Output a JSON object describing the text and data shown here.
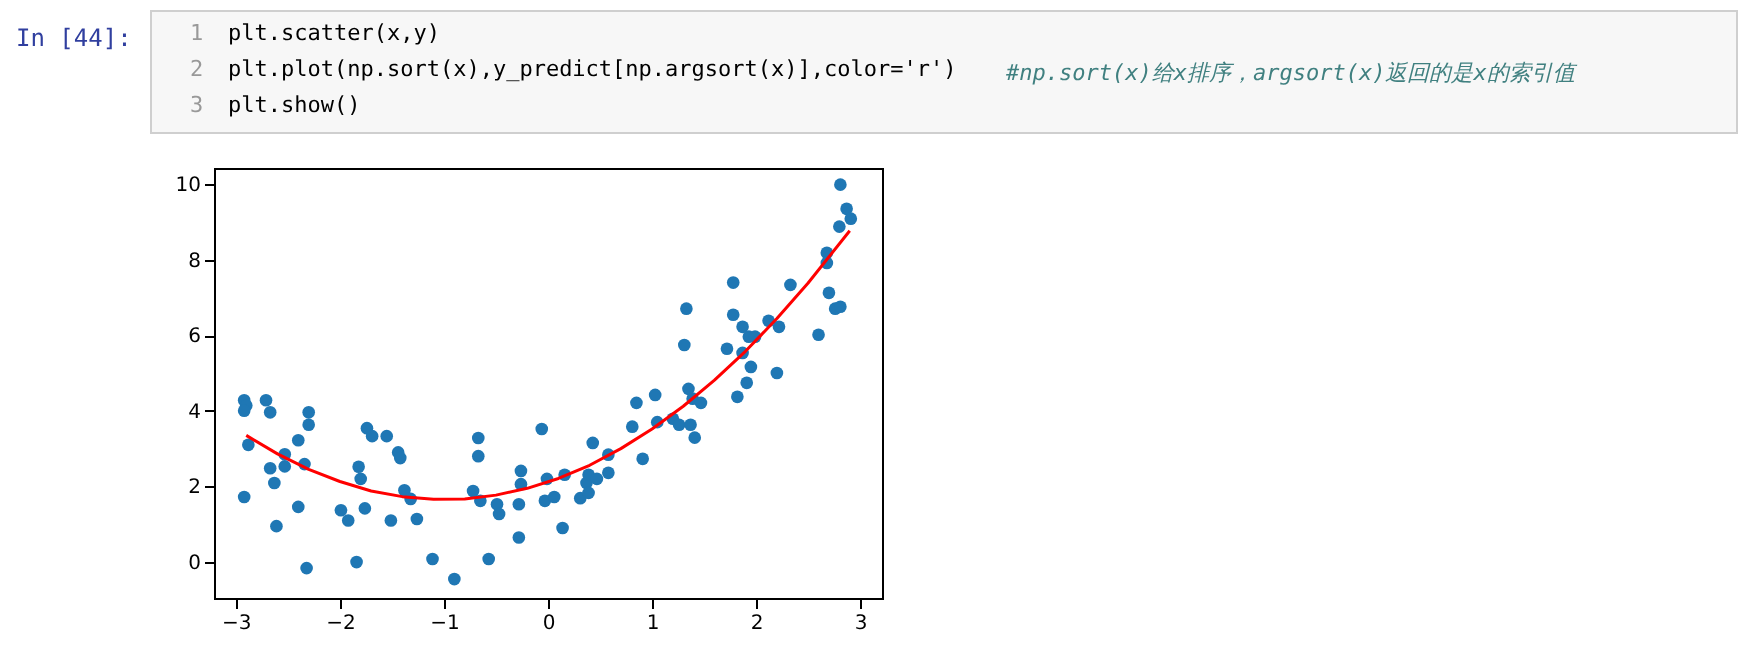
{
  "chart_data": {
    "type": "scatter",
    "annotations": [
      "In [44]:",
      "1",
      "2",
      "3",
      "plt.scatter(x,y)",
      "plt.plot(np.sort(x),y_predict[np.argsort(x)],color='r')",
      "#np.sort(x)给x排序，argsort(x)返回的是x的索引值",
      "plt.show()"
    ],
    "series": [
      {
        "marker": "circle",
        "color": "#1f77b4",
        "x": [
          -2.92,
          -2.9,
          -2.92,
          -2.88,
          -2.92,
          -2.71,
          -2.67,
          -2.67,
          -2.63,
          -2.61,
          -2.53,
          -2.53,
          -2.4,
          -2.4,
          -2.34,
          -2.3,
          -2.3,
          -2.32,
          -1.99,
          -1.92,
          -1.82,
          -1.8,
          -1.84,
          -1.76,
          -1.74,
          -1.69,
          -1.55,
          -1.51,
          -1.44,
          -1.42,
          -1.38,
          -1.32,
          -1.26,
          -1.11,
          -0.9,
          -0.72,
          -0.67,
          -0.67,
          -0.65,
          -0.57,
          -0.49,
          -0.47,
          -0.28,
          -0.28,
          -0.26,
          -0.26,
          -0.06,
          -0.01,
          -0.03,
          0.06,
          0.14,
          0.16,
          0.31,
          0.37,
          0.39,
          0.39,
          0.43,
          0.47,
          0.58,
          0.58,
          0.81,
          0.85,
          0.91,
          1.03,
          1.05,
          1.2,
          1.26,
          1.31,
          1.33,
          1.35,
          1.37,
          1.39,
          1.41,
          1.47,
          1.72,
          1.78,
          1.78,
          1.82,
          1.87,
          1.87,
          1.91,
          1.93,
          1.95,
          1.99,
          2.12,
          2.2,
          2.22,
          2.33,
          2.6,
          2.68,
          2.68,
          2.7,
          2.76,
          2.81,
          2.8,
          2.81,
          2.87,
          2.91
        ],
        "values": [
          4.28,
          4.14,
          4.0,
          3.1,
          1.72,
          4.28,
          3.96,
          2.48,
          2.09,
          0.95,
          2.85,
          2.53,
          3.22,
          1.46,
          2.59,
          3.96,
          3.63,
          -0.16,
          1.37,
          1.1,
          2.52,
          2.2,
          0.0,
          1.42,
          3.54,
          3.33,
          3.33,
          1.1,
          2.9,
          2.75,
          1.9,
          1.67,
          1.14,
          0.08,
          -0.45,
          1.88,
          3.28,
          2.8,
          1.62,
          0.08,
          1.53,
          1.27,
          0.65,
          1.53,
          2.06,
          2.41,
          3.52,
          2.2,
          1.62,
          1.72,
          0.9,
          2.31,
          1.69,
          2.09,
          2.31,
          1.83,
          3.15,
          2.2,
          2.84,
          2.36,
          3.58,
          4.21,
          2.73,
          4.42,
          3.7,
          3.79,
          3.63,
          5.74,
          6.7,
          4.58,
          3.63,
          4.32,
          3.29,
          4.21,
          5.64,
          7.39,
          6.54,
          4.37,
          6.22,
          5.53,
          4.74,
          5.96,
          5.16,
          5.96,
          6.38,
          5.0,
          6.22,
          7.33,
          6.01,
          8.18,
          7.91,
          7.12,
          6.7,
          6.75,
          8.87,
          9.98,
          9.34,
          9.08
        ]
      },
      {
        "type": "line",
        "marker": "none",
        "color": "#ff0000",
        "x": [
          -2.9,
          -2.6,
          -2.3,
          -2.0,
          -1.7,
          -1.4,
          -1.1,
          -0.8,
          -0.5,
          -0.2,
          0.1,
          0.4,
          0.7,
          1.0,
          1.3,
          1.6,
          1.9,
          2.2,
          2.5,
          2.9
        ],
        "values": [
          3.35,
          2.86,
          2.45,
          2.13,
          1.88,
          1.73,
          1.66,
          1.67,
          1.77,
          1.95,
          2.21,
          2.56,
          3.0,
          3.52,
          4.12,
          4.81,
          5.58,
          6.44,
          7.38,
          8.76
        ]
      }
    ],
    "xlim": [
      -3.21,
      3.21
    ],
    "xticks": [
      -3,
      -2,
      -1,
      0,
      1,
      2,
      3
    ],
    "ylim": [
      -0.95,
      10.42
    ],
    "yticks": [
      0,
      2,
      4,
      6,
      8,
      10
    ],
    "grid": false,
    "line_style": "solid"
  }
}
